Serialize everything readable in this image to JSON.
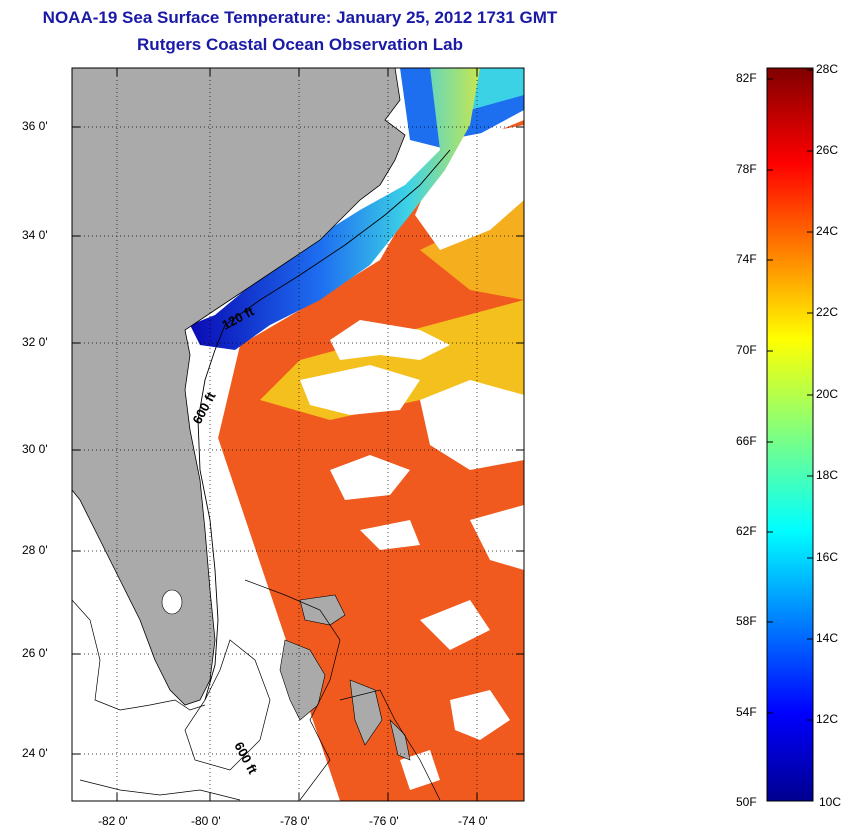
{
  "header": {
    "title": "NOAA-19 Sea Surface Temperature:  January 25, 2012 1731 GMT",
    "subtitle": "Rutgers Coastal Ocean Observation Lab"
  },
  "map": {
    "lat_labels": [
      "36 0'",
      "34 0'",
      "32 0'",
      "30 0'",
      "28 0'",
      "26 0'",
      "24 0'"
    ],
    "lon_labels": [
      "-82 0'",
      "-80 0'",
      "-78 0'",
      "-76 0'",
      "-74 0'"
    ],
    "lat_range": [
      23,
      37
    ],
    "lon_range": [
      -83,
      -73
    ],
    "contour_labels": [
      "120 ft",
      "600 ft",
      "600 ft"
    ],
    "colors": {
      "land": "#aaaaaa",
      "clouds": "#ffffff",
      "warm_water": "#f05a1e",
      "mid_water": "#f5d21e",
      "cool_water": "#1e6ef0",
      "cold_water": "#0a0ab4",
      "contour": "#000000"
    }
  },
  "colorbar": {
    "fahrenheit_labels": [
      "82F",
      "78F",
      "74F",
      "70F",
      "66F",
      "62F",
      "58F",
      "54F",
      "50F"
    ],
    "celsius_labels": [
      "28C",
      "26C",
      "24C",
      "22C",
      "20C",
      "18C",
      "16C",
      "14C",
      "12C",
      "10C"
    ],
    "range_c": [
      10,
      28
    ],
    "range_f": [
      50,
      82
    ],
    "colormap": "jet"
  }
}
